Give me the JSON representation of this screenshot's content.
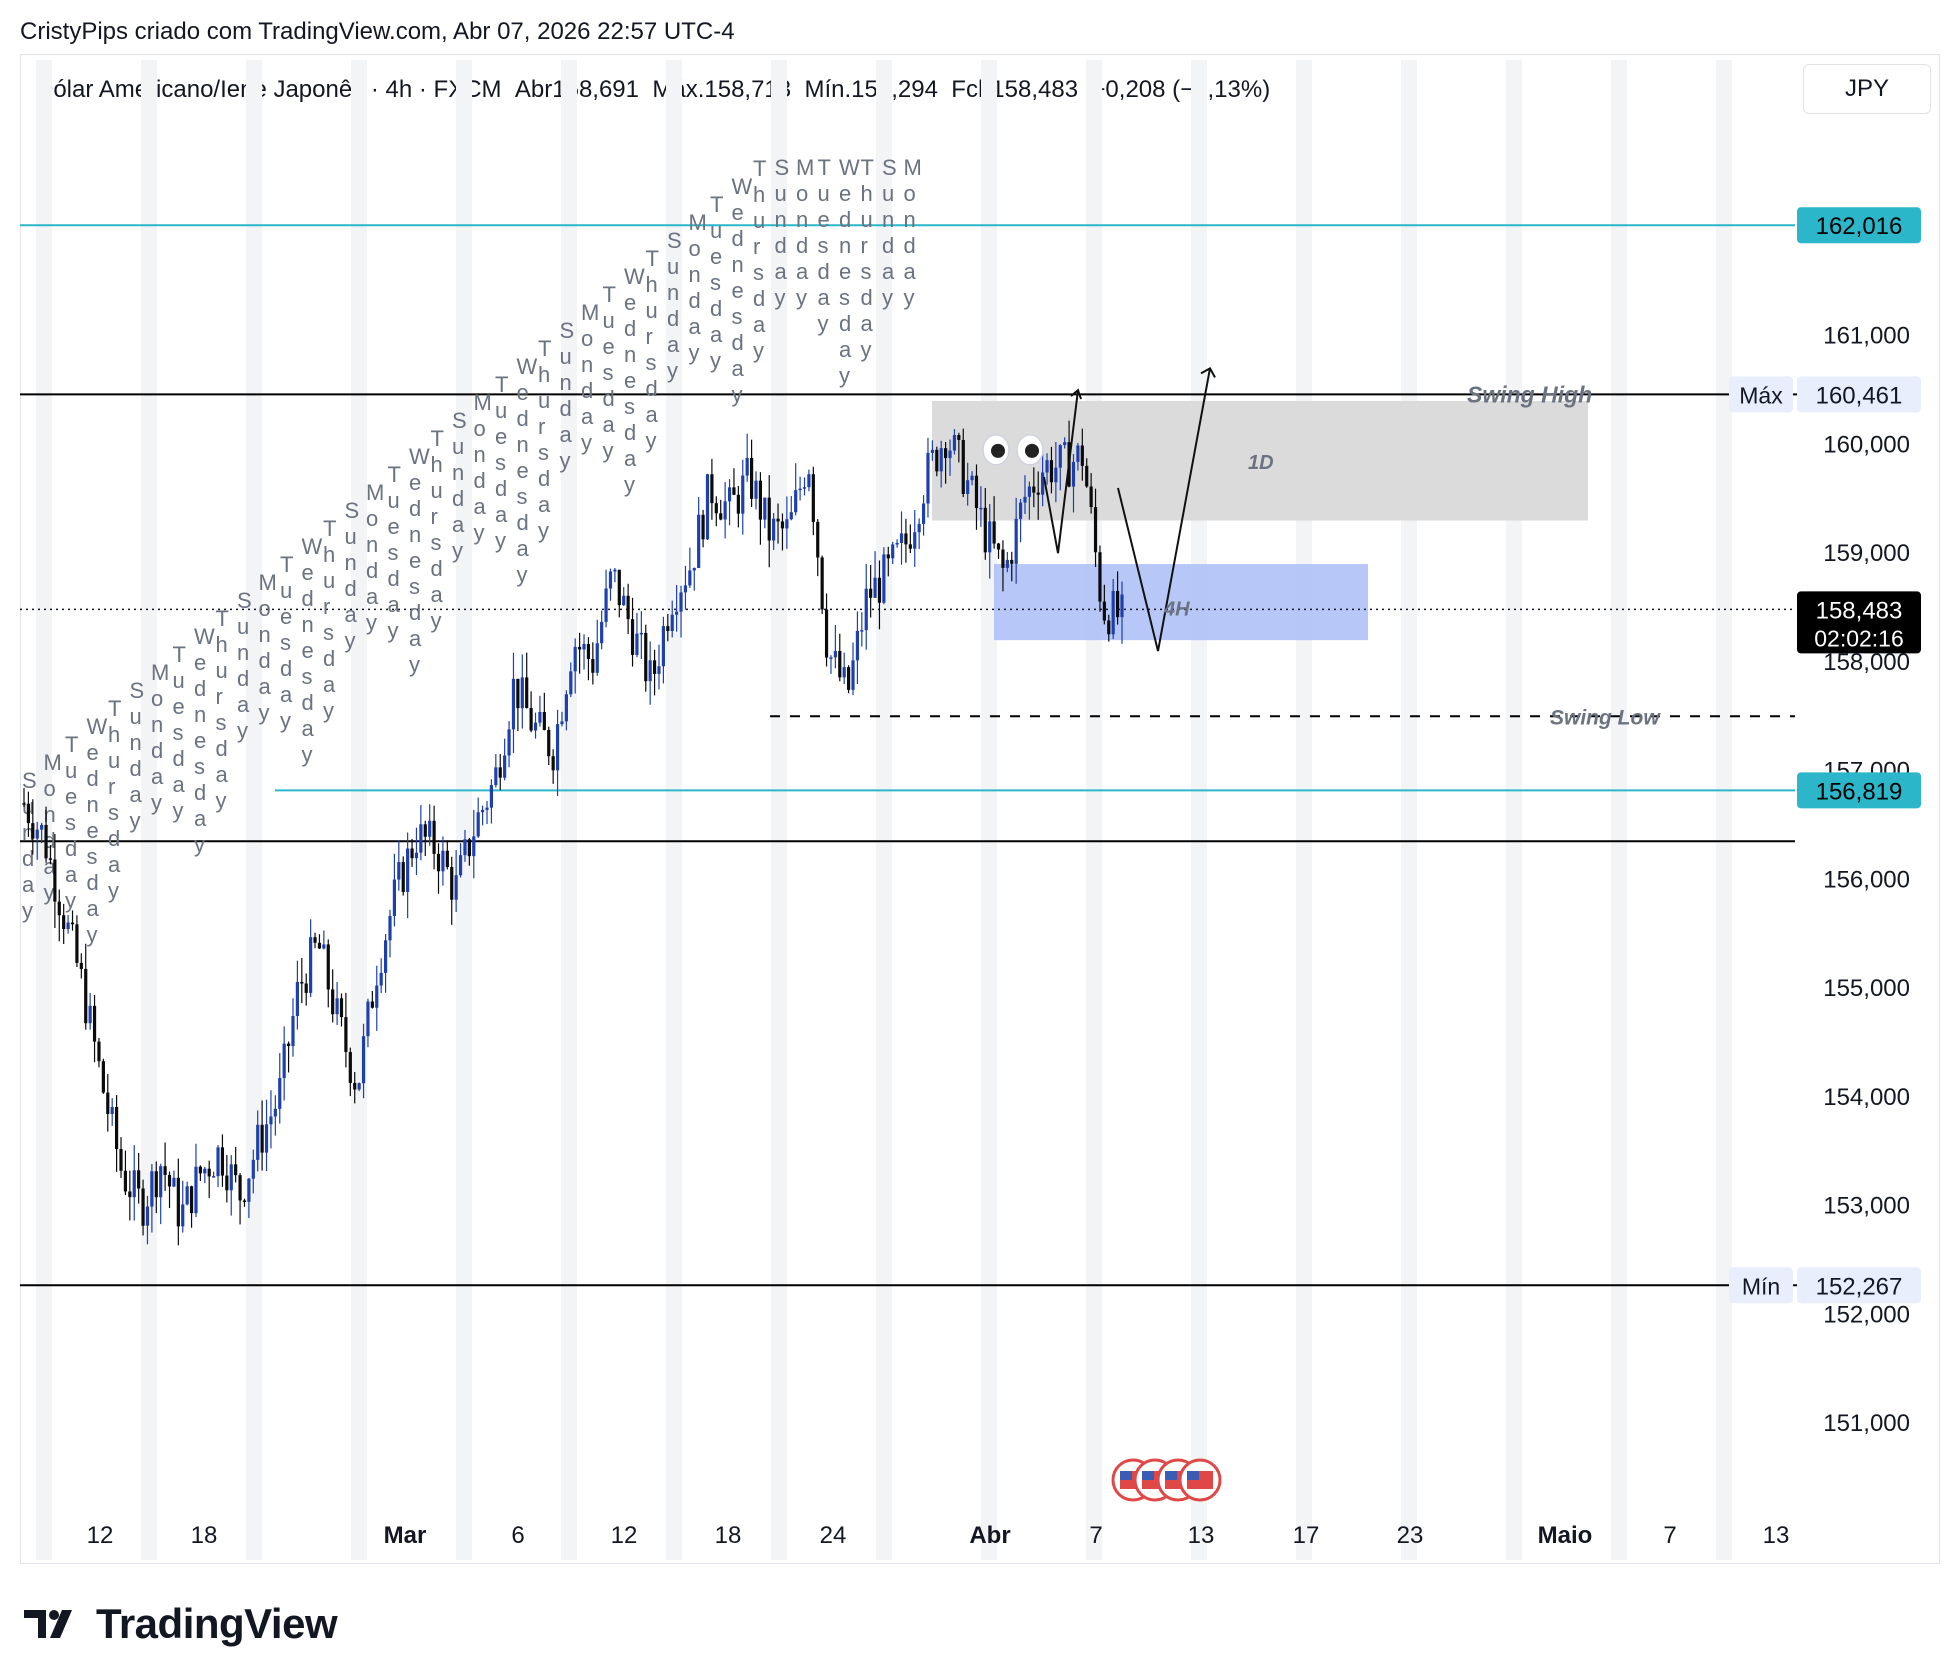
{
  "header": {
    "attribution": "CristyPips criado com TradingView.com, Abr 07, 2026 22:57 UTC-4"
  },
  "legend": {
    "symbol": "Dólar Americano/Iene Japonês · 4h · FXCM",
    "open_label": "Abr",
    "open": "158,691",
    "high_label": "Máx.",
    "high": "158,713",
    "low_label": "Mín.",
    "low": "158,294",
    "close_label": "Fch",
    "close": "158,483",
    "change": "−0,208 (−0,13%)"
  },
  "currency_button": "JPY",
  "price_axis": {
    "ticks": [
      "162,016",
      "161,000",
      "160,461",
      "160,000",
      "159,000",
      "158,483",
      "158,000",
      "157,000",
      "156,819",
      "156,000",
      "155,000",
      "154,000",
      "153,000",
      "152,267",
      "152,000",
      "151,000"
    ],
    "max_label": "Máx",
    "min_label": "Mín",
    "countdown": "02:02:16"
  },
  "time_axis": {
    "ticks": [
      "12",
      "18",
      "Mar",
      "6",
      "12",
      "18",
      "24",
      "Abr",
      "7",
      "13",
      "17",
      "23",
      "Maio",
      "7",
      "13"
    ]
  },
  "annotations": {
    "swing_high": "Swing High",
    "swing_low": "Swing Low",
    "zone_1d": "1D",
    "zone_4h": "4H"
  },
  "colors": {
    "candle": "#1e3a8a",
    "cyan_line": "#2bb7c9",
    "zone_1d": "#d9d9d9",
    "zone_4h": "#a9bdf7",
    "last_price_bg": "#000000"
  },
  "footer": {
    "brand": "TradingView"
  },
  "chart_data": {
    "type": "candlestick",
    "symbol": "USD/JPY",
    "timeframe": "4h",
    "y_range": [
      150.2,
      162.8
    ],
    "last_price": 158.483,
    "max": 160.461,
    "min": 152.267,
    "horizontal_levels": [
      {
        "value": 162.016,
        "color": "#2bb7c9"
      },
      {
        "value": 160.461,
        "color": "#000000",
        "label": "Swing High"
      },
      {
        "value": 157.5,
        "style": "dashed",
        "label": "Swing Low"
      },
      {
        "value": 156.819,
        "color": "#2bb7c9"
      },
      {
        "value": 156.35,
        "color": "#000000"
      },
      {
        "value": 152.267,
        "color": "#000000"
      }
    ],
    "zones": [
      {
        "label": "1D",
        "from": 159.3,
        "to": 160.4
      },
      {
        "label": "4H",
        "from": 158.2,
        "to": 158.9
      }
    ],
    "path_close_approx": [
      156.7,
      156.4,
      155.7,
      155.0,
      154.1,
      153.3,
      153.0,
      153.4,
      152.9,
      153.3,
      153.5,
      153.1,
      153.6,
      154.0,
      155.0,
      155.4,
      154.7,
      154.1,
      155.2,
      155.9,
      156.4,
      156.3,
      155.9,
      156.5,
      156.9,
      157.8,
      157.4,
      157.2,
      158.2,
      158.0,
      158.8,
      158.3,
      157.8,
      158.6,
      158.9,
      159.6,
      159.4,
      159.7,
      159.2,
      159.2,
      159.9,
      158.1,
      157.7,
      158.6,
      158.8,
      159.1,
      159.7,
      160.1,
      159.7,
      159.2,
      158.8,
      159.5,
      159.8,
      159.8,
      159.9,
      158.5,
      158.4
    ]
  }
}
